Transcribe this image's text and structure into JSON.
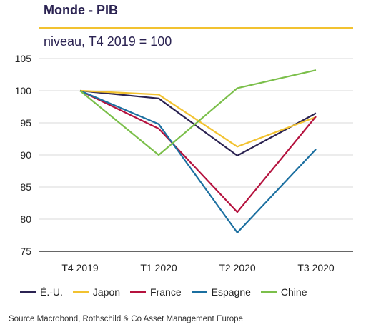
{
  "header": {
    "title": "Monde - PIB",
    "subtitle": "niveau, T4 2019 = 100"
  },
  "footer": {
    "source": "Source Macrobond, Rothschild & Co Asset Management Europe"
  },
  "chart_data": {
    "type": "line",
    "title": "Monde - PIB",
    "subtitle": "niveau, T4 2019 = 100",
    "categories": [
      "T4 2019",
      "T1 2020",
      "T2 2020",
      "T3 2020"
    ],
    "ylim": [
      75,
      105
    ],
    "yticks": [
      75,
      80,
      85,
      90,
      95,
      100,
      105
    ],
    "grid": true,
    "legend_position": "bottom",
    "series": [
      {
        "name": "É.-U.",
        "color": "#2b2352",
        "values": [
          100,
          98.8,
          89.9,
          96.5
        ]
      },
      {
        "name": "Japon",
        "color": "#f2c230",
        "values": [
          100,
          99.4,
          91.3,
          95.9
        ]
      },
      {
        "name": "France",
        "color": "#b5123e",
        "values": [
          100,
          94.1,
          81.1,
          96.0
        ]
      },
      {
        "name": "Espagne",
        "color": "#1b6fa0",
        "values": [
          100,
          94.8,
          77.9,
          90.9
        ]
      },
      {
        "name": "Chine",
        "color": "#7bbf4a",
        "values": [
          100,
          90.0,
          100.4,
          103.2
        ]
      }
    ]
  }
}
